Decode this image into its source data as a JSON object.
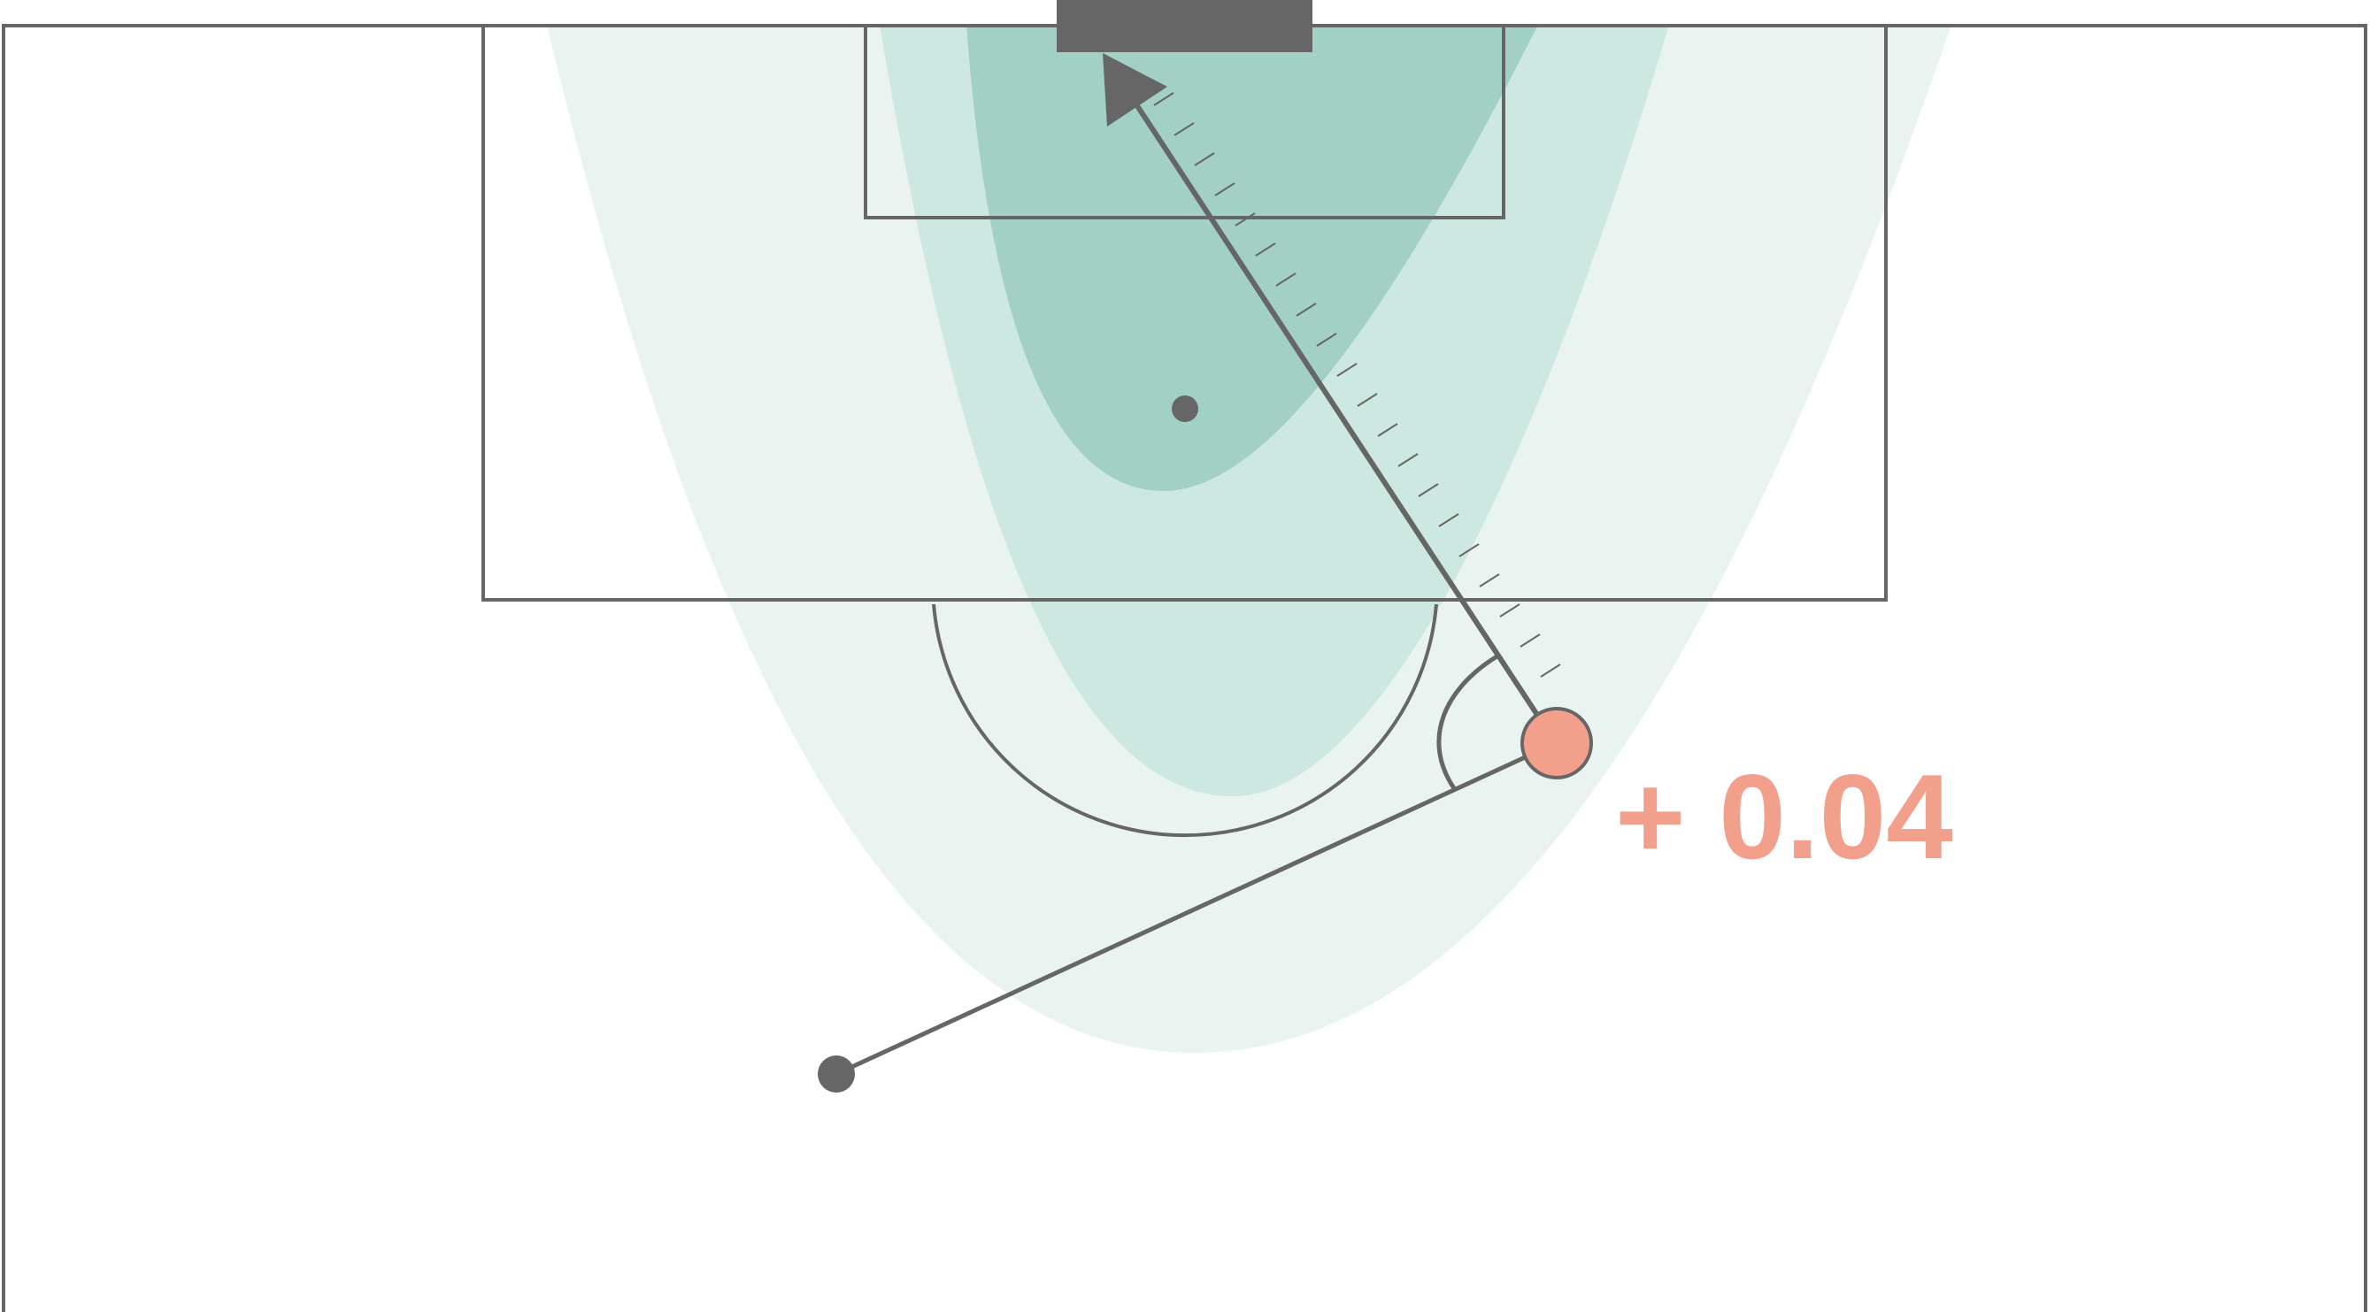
{
  "diagram": {
    "annotation": {
      "xg_change_label": "+ 0.04"
    },
    "colors": {
      "pitch_lines": "#666666",
      "goal": "#666666",
      "zone_outer": "#e9f4f0",
      "zone_middle": "#cde8e0",
      "zone_inner": "#a2d0c4",
      "shot_marker_fill": "#f29f8c",
      "annotation_text": "#f29f8c",
      "background": "#ffffff"
    },
    "icons": {
      "penalty_spot": "filled-dot",
      "pass_origin": "filled-dot",
      "shot_position": "circle-marker",
      "shot_direction": "arrow-head"
    }
  }
}
